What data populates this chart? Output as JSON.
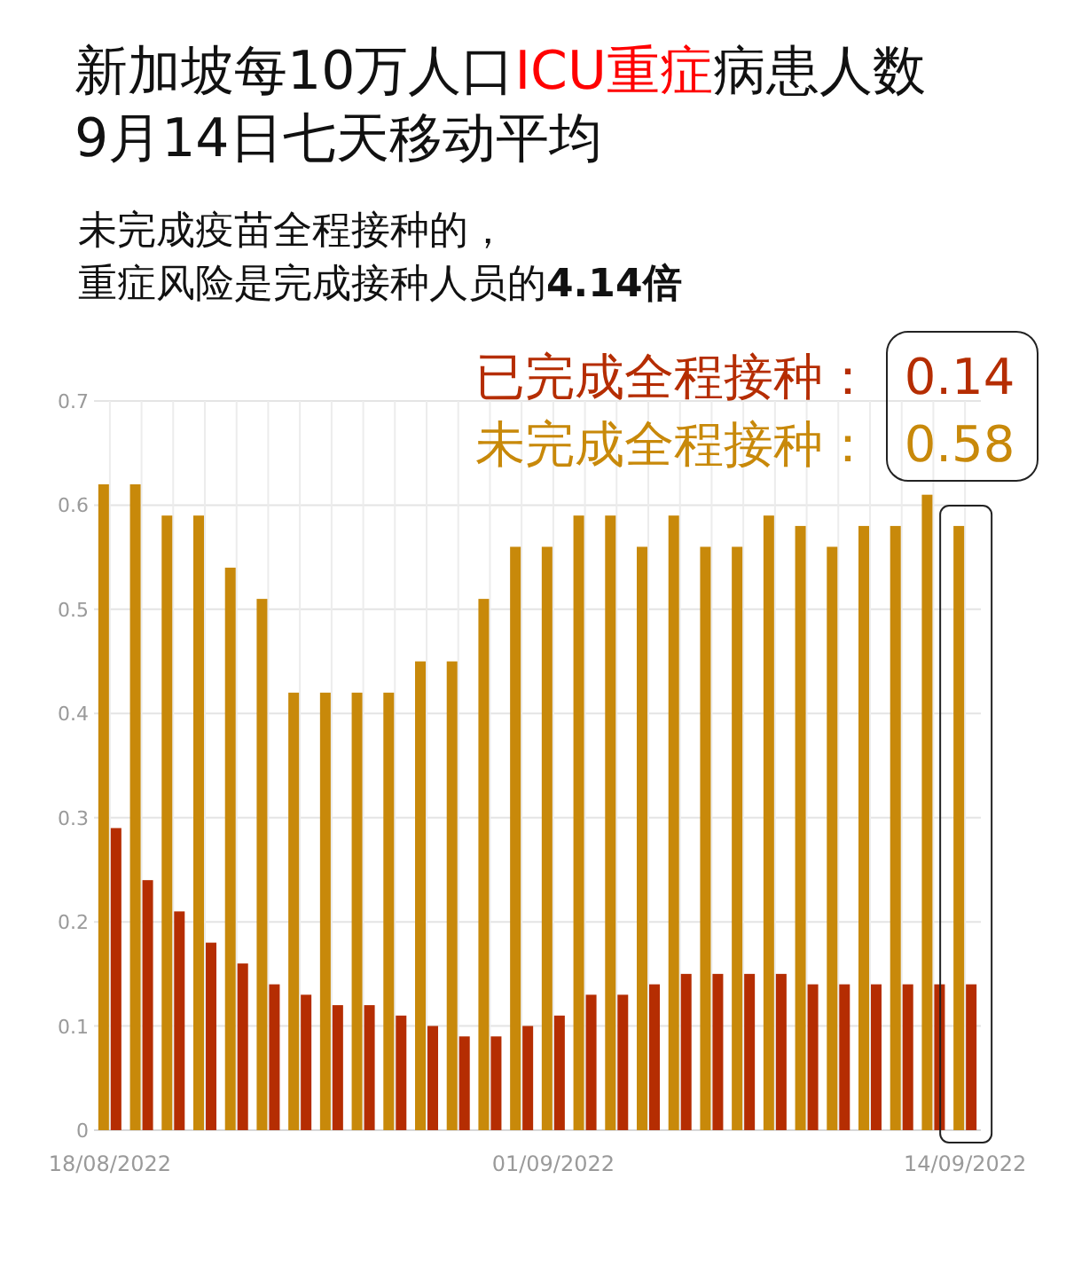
{
  "chart_data": {
    "type": "bar",
    "title": "新加坡每10万人口ICU重症病患人数\n9月14日七天移动平均",
    "subtitle": "未完成疫苗全程接种的，重症风险是完成接种人员的4.14倍",
    "categories": [
      "18/08/2022",
      null,
      null,
      null,
      null,
      null,
      null,
      null,
      null,
      null,
      null,
      null,
      null,
      null,
      "01/09/2022",
      null,
      null,
      null,
      null,
      null,
      null,
      null,
      null,
      null,
      null,
      null,
      null,
      "14/09/2022"
    ],
    "series": [
      {
        "name": "未完成全程接种：",
        "color": "#c8890a",
        "values": [
          0.62,
          0.62,
          0.59,
          0.59,
          0.54,
          0.51,
          0.42,
          0.42,
          0.42,
          0.42,
          0.45,
          0.45,
          0.51,
          0.56,
          0.56,
          0.59,
          0.59,
          0.56,
          0.59,
          0.56,
          0.56,
          0.59,
          0.58,
          0.56,
          0.58,
          0.58,
          0.61,
          0.58
        ]
      },
      {
        "name": "已完成全程接种：",
        "color": "#b52d02",
        "values": [
          0.29,
          0.24,
          0.21,
          0.18,
          0.16,
          0.14,
          0.13,
          0.12,
          0.12,
          0.11,
          0.1,
          0.09,
          0.09,
          0.1,
          0.11,
          0.13,
          0.13,
          0.14,
          0.15,
          0.15,
          0.15,
          0.15,
          0.14,
          0.14,
          0.14,
          0.14,
          0.14,
          0.14
        ]
      }
    ],
    "annotations": [
      "0.14",
      "0.58"
    ],
    "ylim": [
      0,
      0.7
    ],
    "yticks": [
      0,
      0.1,
      0.2,
      0.3,
      0.4,
      0.5,
      0.6,
      0.7
    ],
    "grid": true,
    "legend": "top right"
  }
}
